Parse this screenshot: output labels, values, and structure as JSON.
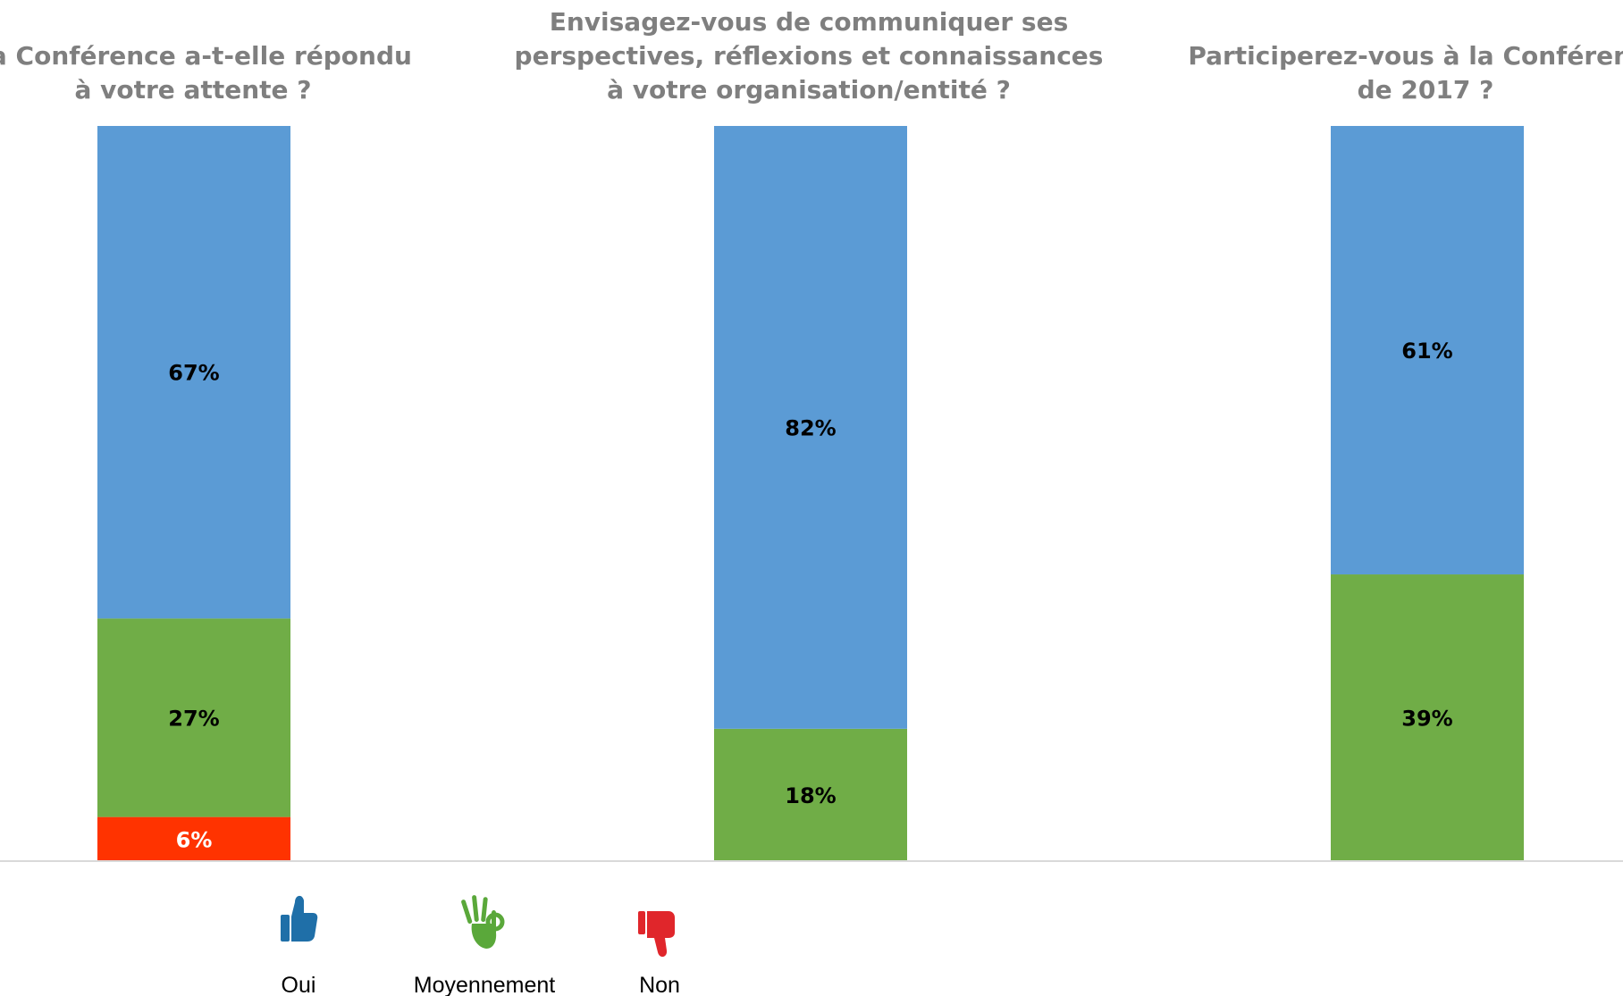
{
  "chart_data": [
    {
      "type": "bar",
      "stacked": true,
      "title_lines": [
        "La Conférence a-t-elle répondu",
        "à votre attente ?"
      ],
      "segments": [
        {
          "category": "Non",
          "value": 6,
          "label": "6%"
        },
        {
          "category": "Moyennement",
          "value": 27,
          "label": "27%"
        },
        {
          "category": "Oui",
          "value": 67,
          "label": "67%"
        }
      ],
      "ylim": [
        0,
        100
      ]
    },
    {
      "type": "bar",
      "stacked": true,
      "title_lines": [
        "Envisagez-vous de communiquer ses",
        "perspectives, réflexions et connaissances",
        "à votre organisation/entité ?"
      ],
      "segments": [
        {
          "category": "Moyennement",
          "value": 18,
          "label": "18%"
        },
        {
          "category": "Oui",
          "value": 82,
          "label": "82%"
        }
      ],
      "ylim": [
        0,
        100
      ]
    },
    {
      "type": "bar",
      "stacked": true,
      "title_lines": [
        "Participerez-vous à la Conférence",
        "de 2017 ?"
      ],
      "segments": [
        {
          "category": "Moyennement",
          "value": 39,
          "label": "39%"
        },
        {
          "category": "Oui",
          "value": 61,
          "label": "61%"
        }
      ],
      "ylim": [
        0,
        100
      ]
    }
  ],
  "legend": {
    "placement": "bottom-left",
    "items": [
      {
        "category": "Oui",
        "label": "Oui",
        "icon": "thumbs-up-icon",
        "color": "#1f6fa8"
      },
      {
        "category": "Moyennement",
        "label": "Moyennement",
        "icon": "ok-hand-icon",
        "color": "#5aa83a"
      },
      {
        "category": "Non",
        "label": "Non",
        "icon": "thumbs-down-icon",
        "color": "#e0262b"
      }
    ]
  },
  "colors": {
    "Oui": "#5b9bd5",
    "Moyennement": "#70ad47",
    "Non": "#ff3300",
    "title": "#7f7f7f",
    "baseline": "#d9d9d9",
    "label_on_light": "#000000",
    "label_on_red": "#ffffff"
  }
}
